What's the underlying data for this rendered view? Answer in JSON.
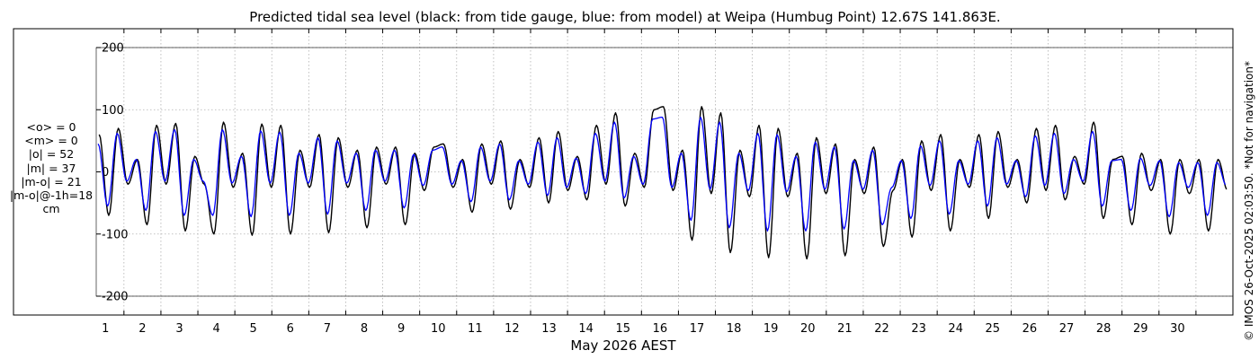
{
  "chart_data": {
    "type": "line",
    "title": "Predicted tidal sea level (black: from tide gauge, blue: from model) at Weipa (Humbug Point) 12.67S 141.863E.",
    "xlabel": "May 2026 AEST",
    "ylabel": "",
    "ylim": [
      -200,
      200
    ],
    "yticks": [
      -200,
      -100,
      0,
      100,
      200
    ],
    "x_day_range": [
      0.25,
      31.0
    ],
    "xticks": [
      "1",
      "2",
      "3",
      "4",
      "5",
      "6",
      "7",
      "8",
      "9",
      "10",
      "11",
      "12",
      "13",
      "14",
      "15",
      "16",
      "17",
      "18",
      "19",
      "20",
      "21",
      "22",
      "23",
      "24",
      "25",
      "26",
      "27",
      "28",
      "29",
      "30"
    ],
    "grid": true,
    "stats": [
      "<o> = 0",
      "<m> = 0",
      "|o| = 52",
      "|m| = 37",
      "|m-o| = 21",
      "|m-o|@-1h=18",
      "cm"
    ],
    "series": [
      {
        "color": "#000000",
        "x": [
          0.5,
          1.0,
          1.5,
          2.0,
          2.5,
          3.0,
          3.5,
          4.0,
          4.5,
          5.0,
          5.5,
          6.0,
          6.5,
          7.0,
          7.5,
          8.0,
          8.5,
          9.0,
          9.5,
          10.0,
          10.5,
          11.0,
          11.5,
          12.0,
          12.5,
          13.0,
          13.5,
          14.0,
          14.5,
          15.0,
          15.5,
          16.0,
          16.5,
          17.0,
          17.5,
          18.0,
          18.5,
          19.0,
          19.5,
          20.0,
          20.5,
          21.0,
          21.5,
          22.0,
          22.5,
          23.0,
          23.5,
          24.0,
          24.5,
          25.0,
          25.5,
          26.0,
          26.5,
          27.0,
          27.5,
          28.0,
          28.5,
          29.0,
          29.5,
          30.0,
          30.5,
          31.0
        ],
        "high": [
          60,
          70,
          20,
          75,
          78,
          25,
          82,
          80,
          30,
          77,
          75,
          35,
          60,
          55,
          35,
          40,
          40,
          30,
          40,
          45,
          20,
          45,
          50,
          20,
          55,
          65,
          25,
          75,
          95,
          30,
          100,
          105,
          35,
          105,
          95,
          35,
          75,
          70,
          30,
          55,
          45,
          20,
          40,
          45,
          20,
          50,
          60,
          20,
          60,
          65,
          20,
          70,
          75,
          25,
          80,
          20,
          25,
          30,
          20,
          20,
          20,
          20
        ],
        "low": [
          -70,
          -20,
          -85,
          -20,
          -95,
          -20,
          -100,
          -25,
          -102,
          -25,
          -100,
          -25,
          -98,
          -25,
          -90,
          -20,
          -85,
          -30,
          -75,
          -25,
          -65,
          -20,
          -60,
          -25,
          -50,
          -30,
          -45,
          -20,
          -55,
          -25,
          -75,
          -30,
          -110,
          -35,
          -130,
          -40,
          -138,
          -40,
          -140,
          -35,
          -135,
          -35,
          -120,
          -30,
          -105,
          -30,
          -95,
          -25,
          -75,
          -25,
          -50,
          -30,
          -45,
          -20,
          -75,
          -25,
          -85,
          -30,
          -100,
          -35,
          -95,
          -30
        ]
      },
      {
        "color": "#0000ff",
        "x": [
          0.5,
          1.0,
          1.5,
          2.0,
          2.5,
          3.0,
          3.5,
          4.0,
          4.5,
          5.0,
          5.5,
          6.0,
          6.5,
          7.0,
          7.5,
          8.0,
          8.5,
          9.0,
          9.5,
          10.0,
          10.5,
          11.0,
          11.5,
          12.0,
          12.5,
          13.0,
          13.5,
          14.0,
          14.5,
          15.0,
          15.5,
          16.0,
          16.5,
          17.0,
          17.5,
          18.0,
          18.5,
          19.0,
          19.5,
          20.0,
          20.5,
          21.0,
          21.5,
          22.0,
          22.5,
          23.0,
          23.5,
          24.0,
          24.5,
          25.0,
          25.5,
          26.0,
          26.5,
          27.0,
          27.5,
          28.0,
          28.5,
          29.0,
          29.5,
          30.0,
          30.5,
          31.0
        ],
        "high": [
          45,
          62,
          20,
          65,
          68,
          20,
          70,
          68,
          25,
          66,
          64,
          30,
          55,
          50,
          30,
          35,
          35,
          28,
          35,
          40,
          18,
          40,
          45,
          18,
          48,
          55,
          22,
          62,
          80,
          25,
          85,
          88,
          30,
          88,
          80,
          30,
          62,
          60,
          25,
          48,
          40,
          18,
          35,
          40,
          18,
          42,
          50,
          18,
          50,
          55,
          18,
          58,
          62,
          20,
          65,
          18,
          20,
          22,
          18,
          15,
          15,
          15
        ],
        "low": [
          -55,
          -15,
          -62,
          -15,
          -70,
          -15,
          -70,
          -18,
          -72,
          -18,
          -70,
          -18,
          -68,
          -18,
          -62,
          -15,
          -58,
          -22,
          -52,
          -20,
          -48,
          -15,
          -45,
          -20,
          -38,
          -25,
          -35,
          -15,
          -42,
          -20,
          -55,
          -25,
          -78,
          -28,
          -90,
          -30,
          -95,
          -32,
          -95,
          -28,
          -92,
          -28,
          -85,
          -25,
          -75,
          -22,
          -68,
          -20,
          -55,
          -20,
          -40,
          -22,
          -35,
          -15,
          -55,
          -20,
          -62,
          -22,
          -72,
          -25,
          -70,
          -22
        ]
      }
    ]
  },
  "footer_note": "© IMOS 26-Oct-2025 02:03:50. *Not for navigation*"
}
